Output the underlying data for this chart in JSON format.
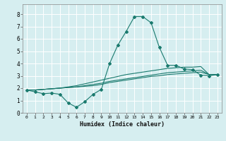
{
  "title": "",
  "xlabel": "Humidex (Indice chaleur)",
  "ylabel": "",
  "bg_color": "#d6eef0",
  "grid_color": "#ffffff",
  "line_color": "#1a7a6e",
  "xlim": [
    -0.5,
    23.5
  ],
  "ylim": [
    0,
    8.8
  ],
  "xticks": [
    0,
    1,
    2,
    3,
    4,
    5,
    6,
    7,
    8,
    9,
    10,
    11,
    12,
    13,
    14,
    15,
    16,
    17,
    18,
    19,
    20,
    21,
    22,
    23
  ],
  "yticks": [
    0,
    1,
    2,
    3,
    4,
    5,
    6,
    7,
    8
  ],
  "line1_x": [
    0,
    1,
    2,
    3,
    4,
    5,
    6,
    7,
    8,
    9,
    10,
    11,
    12,
    13,
    14,
    15,
    16,
    17,
    18,
    19,
    20,
    21,
    22,
    23
  ],
  "line1_y": [
    1.85,
    1.7,
    1.55,
    1.6,
    1.5,
    0.8,
    0.45,
    0.9,
    1.5,
    1.9,
    4.0,
    5.5,
    6.6,
    7.8,
    7.8,
    7.3,
    5.3,
    3.85,
    3.85,
    3.55,
    3.5,
    3.05,
    3.0,
    3.1
  ],
  "line2_x": [
    0,
    1,
    2,
    3,
    4,
    5,
    6,
    7,
    8,
    9,
    10,
    11,
    12,
    13,
    14,
    15,
    16,
    17,
    18,
    19,
    20,
    21,
    22,
    23
  ],
  "line2_y": [
    1.85,
    1.85,
    1.9,
    1.95,
    2.0,
    2.05,
    2.1,
    2.15,
    2.2,
    2.3,
    2.45,
    2.55,
    2.65,
    2.75,
    2.85,
    2.95,
    3.0,
    3.1,
    3.15,
    3.2,
    3.25,
    3.3,
    3.1,
    3.1
  ],
  "line3_x": [
    0,
    1,
    2,
    3,
    4,
    5,
    6,
    7,
    8,
    9,
    10,
    11,
    12,
    13,
    14,
    15,
    16,
    17,
    18,
    19,
    20,
    21,
    22,
    23
  ],
  "line3_y": [
    1.85,
    1.85,
    1.9,
    1.95,
    2.0,
    2.05,
    2.1,
    2.2,
    2.3,
    2.4,
    2.55,
    2.65,
    2.75,
    2.85,
    2.95,
    3.05,
    3.15,
    3.25,
    3.3,
    3.35,
    3.4,
    3.45,
    3.1,
    3.1
  ],
  "line4_x": [
    0,
    1,
    2,
    3,
    4,
    5,
    6,
    7,
    8,
    9,
    10,
    11,
    12,
    13,
    14,
    15,
    16,
    17,
    18,
    19,
    20,
    21,
    22,
    23
  ],
  "line4_y": [
    1.85,
    1.85,
    1.9,
    1.95,
    2.0,
    2.1,
    2.2,
    2.35,
    2.5,
    2.65,
    2.8,
    2.95,
    3.1,
    3.2,
    3.3,
    3.4,
    3.5,
    3.6,
    3.65,
    3.7,
    3.7,
    3.75,
    3.1,
    3.1
  ]
}
